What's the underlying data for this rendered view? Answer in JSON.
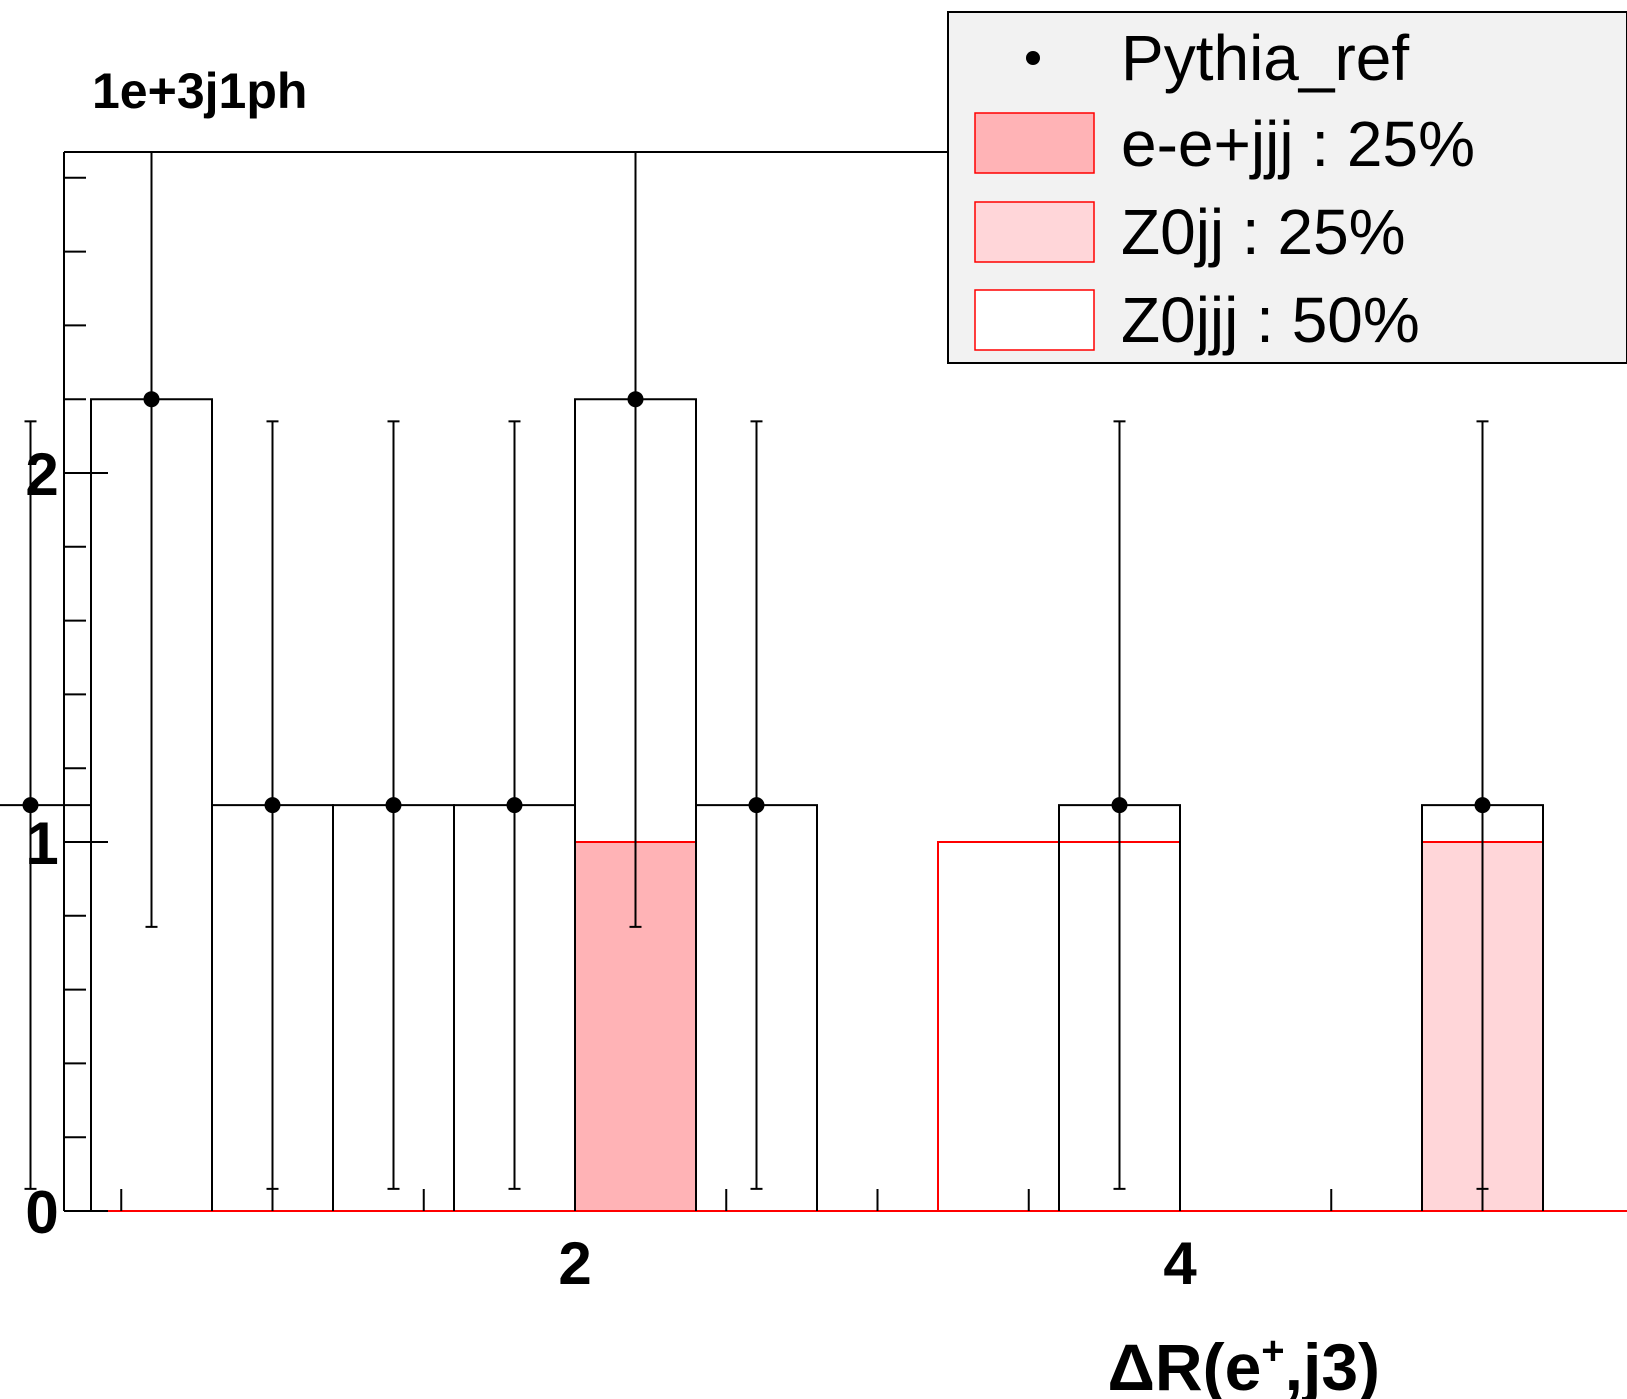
{
  "chart_data": {
    "type": "bar",
    "title": "1e+3j1ph",
    "xlabel": {
      "main": "ΔR(e",
      "sup": "+",
      "rest": ",j3)"
    },
    "ylabel": "",
    "xlim": [
      0.0,
      5.4
    ],
    "ylim": [
      0.0,
      2.88
    ],
    "x_ticks": [
      2,
      4
    ],
    "x_tick_labels": [
      "2",
      "4"
    ],
    "y_ticks": [
      0,
      1,
      2
    ],
    "y_tick_labels": [
      "0",
      "1",
      "2"
    ],
    "bin_width": 0.4,
    "grid": false,
    "legend_position": "top-right",
    "stacked_series": [
      {
        "name": "Z0jjj : 50%",
        "fill": "#ffffff",
        "edge": "#ff0000",
        "bins": [
          [
            3.2,
            1.0
          ],
          [
            3.6,
            1.0
          ]
        ]
      },
      {
        "name": "Z0jj : 25%",
        "fill": "#ffd6d9",
        "edge": "#ff0000",
        "bins": [
          [
            4.8,
            1.0
          ]
        ]
      },
      {
        "name": "e-e+jjj : 25%",
        "fill": "#ffb3b6",
        "edge": "#ff0000",
        "bins": [
          [
            2.0,
            1.0
          ]
        ]
      }
    ],
    "reference": {
      "name": "Pythia_ref",
      "x": [
        0.2,
        0.6,
        1.0,
        1.4,
        1.8,
        2.2,
        2.6,
        3.0,
        3.4,
        3.8,
        4.2,
        4.6,
        5.0
      ],
      "y": [
        1.1,
        2.2,
        1.1,
        1.1,
        1.1,
        2.2,
        1.1,
        0,
        0,
        1.1,
        0,
        0,
        1.1
      ],
      "err_low": [
        1.04,
        1.43,
        1.04,
        1.04,
        1.04,
        1.43,
        1.04,
        0,
        0,
        1.04,
        0,
        0,
        1.04
      ],
      "err_high": [
        1.04,
        1.43,
        1.04,
        1.04,
        1.04,
        1.43,
        1.04,
        0,
        0,
        1.04,
        0,
        0,
        1.04
      ]
    }
  }
}
